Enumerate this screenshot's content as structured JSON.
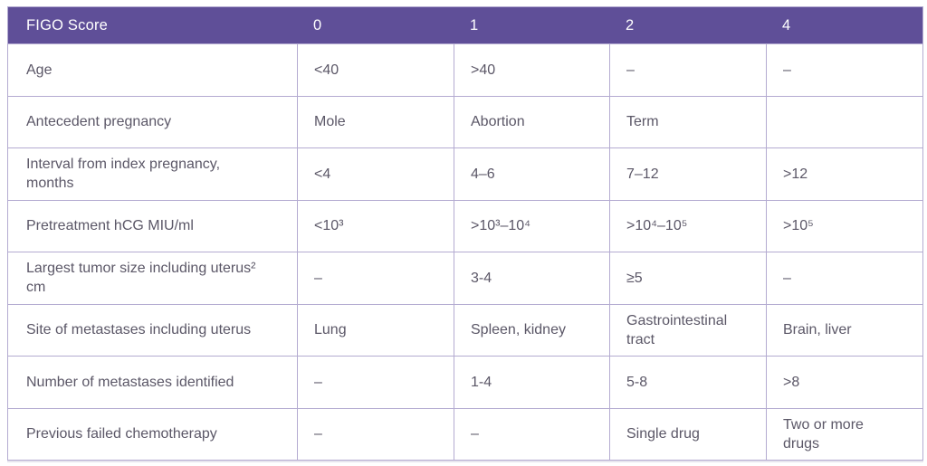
{
  "table": {
    "header": {
      "labels": [
        "FIGO Score",
        "0",
        "1",
        "2",
        "4"
      ],
      "bg_color": "#5f4f98",
      "text_color": "#ffffff"
    },
    "style": {
      "border_color": "#b4abd1",
      "body_text_color": "#5b5767"
    },
    "rows": [
      {
        "label": "Age",
        "values": [
          "<40",
          ">40",
          "–",
          "–"
        ]
      },
      {
        "label": "Antecedent pregnancy",
        "values": [
          "Mole",
          "Abortion",
          "Term",
          ""
        ]
      },
      {
        "label": "Interval from index pregnancy, months",
        "values": [
          "<4",
          "4–6",
          "7–12",
          ">12"
        ]
      },
      {
        "label": "Pretreatment hCG MIU/ml",
        "values": [
          "<10³",
          ">10³–10⁴",
          ">10⁴–10⁵",
          ">10⁵"
        ]
      },
      {
        "label": "Largest tumor size including uterus² cm",
        "values": [
          "–",
          "3-4",
          "≥5",
          "–"
        ]
      },
      {
        "label": "Site of metastases including uterus",
        "values": [
          "Lung",
          "Spleen, kidney",
          "Gastrointestinal tract",
          "Brain, liver"
        ]
      },
      {
        "label": "Number of metastases identified",
        "values": [
          "–",
          "1-4",
          "5-8",
          ">8"
        ]
      },
      {
        "label": "Previous failed chemotherapy",
        "values": [
          "–",
          "–",
          "Single drug",
          "Two or more drugs"
        ]
      }
    ]
  }
}
